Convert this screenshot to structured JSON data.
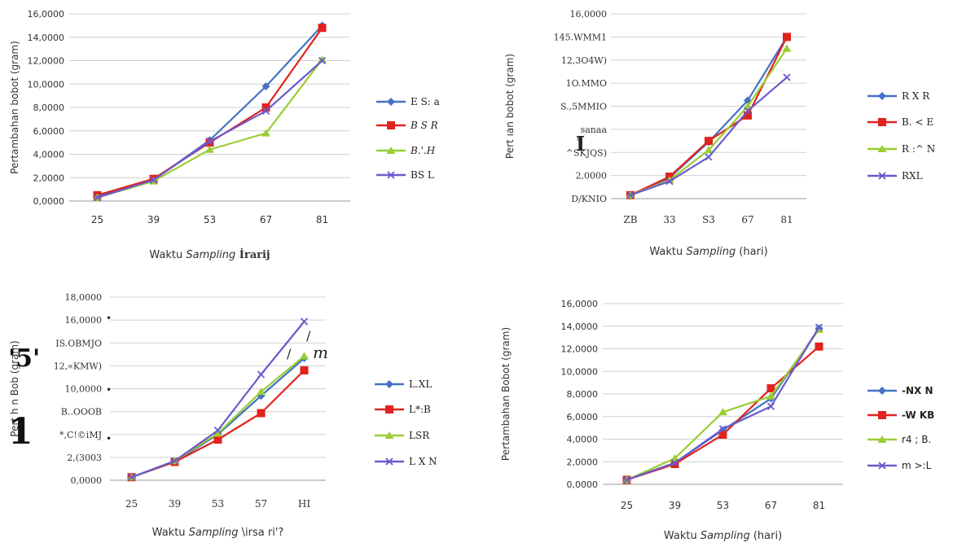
{
  "series_colors": [
    "#4472C4",
    "#E0231C",
    "#9ACD32",
    "#6A5ACD"
  ],
  "chart_data": [
    {
      "type": "line",
      "categories": [
        "25",
        "39",
        "53",
        "67",
        "81"
      ],
      "ytick_labels": [
        "0,0000",
        "2,0000",
        "4,0000",
        "6,0000",
        "8,0000",
        "10,0000",
        "12,0000",
        "14,0000",
        "16,0000"
      ],
      "ylim": [
        0,
        16
      ],
      "grid": true,
      "legend": "right",
      "ylabel": "Pertambahan bobot (gram)",
      "xlabel_parts": [
        "Waktu ",
        "Sampling",
        " İrarij"
      ],
      "series": [
        {
          "name": "E S: a",
          "values": [
            0.4,
            1.8,
            5.2,
            9.8,
            15.0
          ]
        },
        {
          "name": "B S R",
          "values": [
            0.5,
            1.9,
            5.0,
            8.0,
            14.8
          ]
        },
        {
          "name": "B.'.H",
          "values": [
            0.3,
            1.7,
            4.4,
            5.8,
            12.1
          ]
        },
        {
          "name": "BS L",
          "values": [
            0.3,
            1.8,
            5.1,
            7.7,
            12.0
          ]
        }
      ]
    },
    {
      "type": "line",
      "categories": [
        "ZB",
        "33",
        "S3",
        "67",
        "81"
      ],
      "ytick_labels": [
        "D/KNIO",
        "2,0000",
        "^SKJQS)",
        "sanaa",
        "S.,5MMIO",
        "1O.MMO",
        "12,3O4W)",
        "145.WMM1",
        "16,0000"
      ],
      "ylim": [
        0,
        16
      ],
      "grid": true,
      "legend": "right",
      "ylabel_parts": [
        "Pert",
        "ıan",
        "bobot (gram)"
      ],
      "xlabel_parts": [
        "Waktu ",
        "Sampling",
        " (hari)"
      ],
      "series": [
        {
          "name": "R X R",
          "values": [
            0.3,
            1.8,
            4.9,
            8.5,
            14.0
          ]
        },
        {
          "name": "B. < E",
          "values": [
            0.3,
            1.9,
            5.0,
            7.2,
            14.0
          ]
        },
        {
          "name": "R :^ N",
          "values": [
            0.3,
            1.6,
            4.2,
            8.0,
            13.0
          ]
        },
        {
          "name": "RXL",
          "values": [
            0.3,
            1.5,
            3.6,
            7.6,
            10.5
          ]
        }
      ]
    },
    {
      "type": "line",
      "categories": [
        "25",
        "39",
        "53",
        "57",
        "HI"
      ],
      "ytick_labels": [
        "0,0000",
        "2,(3003",
        "*,C!©iMJ",
        "B..OOOB",
        "10,0000",
        "12,«KMW)",
        "IS.OBMJO",
        "16,0000",
        "18,0000"
      ],
      "ylim": [
        0,
        18
      ],
      "grid": true,
      "legend": "right",
      "ylabel_parts": [
        "Pert",
        "h n Bob",
        "(gram)"
      ],
      "xlabel_parts": [
        "Waktu ",
        "Sampling",
        " \\irsa ri'?"
      ],
      "series": [
        {
          "name": "L.XL",
          "values": [
            0.3,
            1.8,
            4.5,
            8.3,
            12.0
          ]
        },
        {
          "name": "L*:B",
          "values": [
            0.3,
            1.8,
            4.0,
            6.6,
            10.8
          ]
        },
        {
          "name": "LSR",
          "values": [
            0.3,
            1.9,
            4.6,
            8.7,
            12.2
          ]
        },
        {
          "name": "L X N",
          "values": [
            0.3,
            1.9,
            4.9,
            10.4,
            15.6
          ]
        }
      ]
    },
    {
      "type": "line",
      "categories": [
        "25",
        "39",
        "53",
        "67",
        "81"
      ],
      "ytick_labels": [
        "0,0000",
        "2,0000",
        "4,0000",
        "6,0000",
        "8,0000",
        "10,0000",
        "12,0000",
        "14,0000",
        "16,0000"
      ],
      "ylim": [
        0,
        16
      ],
      "grid": true,
      "legend": "right",
      "ylabel": "Pertambahan Bobot (gram)",
      "xlabel_parts": [
        "Waktu ",
        "Sampling",
        " (hari)"
      ],
      "series": [
        {
          "name": "-NX N",
          "values": [
            0.4,
            1.9,
            4.8,
            7.6,
            13.8
          ]
        },
        {
          "name": "-W KB",
          "values": [
            0.4,
            1.8,
            4.4,
            8.5,
            12.2
          ]
        },
        {
          "name": "r4 ; B.",
          "values": [
            0.4,
            2.3,
            6.4,
            7.8,
            13.7
          ]
        },
        {
          "name": "m >:L",
          "values": [
            0.4,
            1.9,
            4.9,
            6.9,
            13.9
          ]
        }
      ]
    }
  ],
  "stray_marks": {
    "p2_asterisk": "*",
    "p2_glyph": "I",
    "p3_five": "'5'",
    "p3_one": "1",
    "p3_m": "m",
    "p3_slash": "/",
    "p3_bullet": "•"
  }
}
